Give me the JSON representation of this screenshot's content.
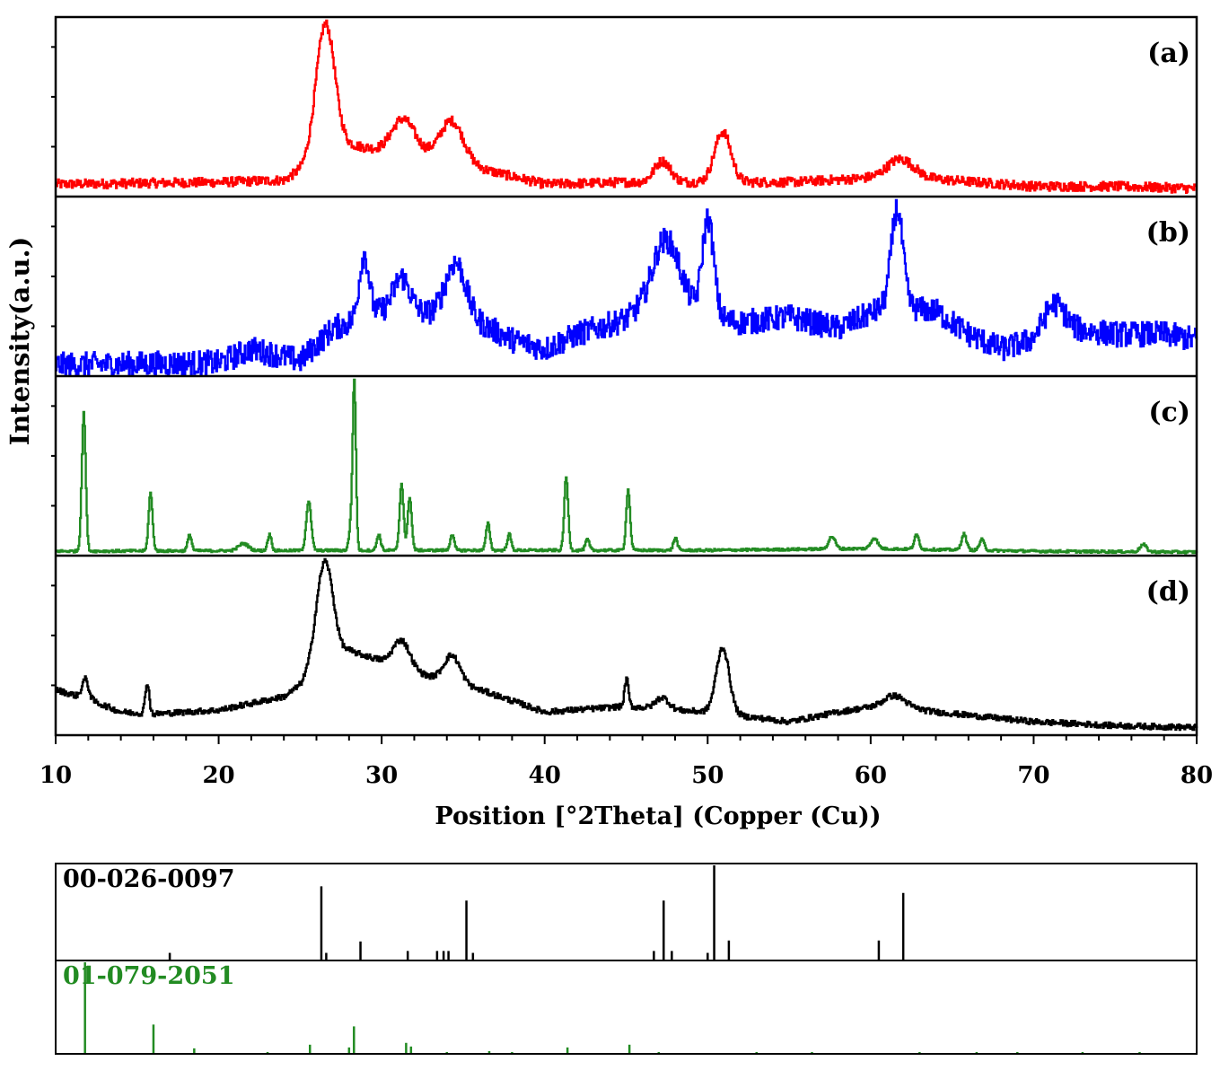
{
  "chart_data": [
    {
      "type": "line",
      "title": "",
      "xlabel": "Position [°2Theta] (Copper (Cu))",
      "ylabel": "Intensity(a.u.)",
      "xlim": [
        10,
        80
      ],
      "x_ticks": [
        10,
        20,
        30,
        40,
        50,
        60,
        70,
        80
      ],
      "x_tick_labels": [
        "10",
        "20",
        "30",
        "40",
        "50",
        "60",
        "70",
        "80"
      ],
      "grid": false,
      "legend": "none",
      "panels": [
        {
          "label": "(a)",
          "color": "#ff0000",
          "noise": 9,
          "baseline": [
            [
              10,
              10
            ],
            [
              20,
              12
            ],
            [
              24,
              14
            ],
            [
              25,
              24
            ],
            [
              26,
              40
            ],
            [
              27,
              55
            ],
            [
              28,
              48
            ],
            [
              30,
              42
            ],
            [
              33,
              38
            ],
            [
              36,
              25
            ],
            [
              40,
              10
            ],
            [
              45,
              12
            ],
            [
              50,
              12
            ],
            [
              55,
              12
            ],
            [
              60,
              16
            ],
            [
              63,
              16
            ],
            [
              70,
              8
            ],
            [
              75,
              8
            ],
            [
              80,
              6
            ]
          ],
          "peaks": [
            [
              26.5,
              115,
              0.55
            ],
            [
              31.3,
              32,
              0.7
            ],
            [
              34.3,
              38,
              0.7
            ],
            [
              47.2,
              20,
              0.5
            ],
            [
              50.9,
              48,
              0.5
            ],
            [
              61.8,
              18,
              0.8
            ]
          ]
        },
        {
          "label": "(b)",
          "color": "#0000ff",
          "noise": 22,
          "baseline": [
            [
              10,
              8
            ],
            [
              20,
              10
            ],
            [
              22,
              22
            ],
            [
              25,
              12
            ],
            [
              27,
              40
            ],
            [
              30,
              55
            ],
            [
              35,
              52
            ],
            [
              38,
              30
            ],
            [
              40,
              22
            ],
            [
              42,
              35
            ],
            [
              45,
              48
            ],
            [
              47,
              70
            ],
            [
              50,
              50
            ],
            [
              52,
              45
            ],
            [
              55,
              50
            ],
            [
              58,
              40
            ],
            [
              61,
              60
            ],
            [
              64,
              55
            ],
            [
              66,
              35
            ],
            [
              68,
              22
            ],
            [
              70,
              30
            ],
            [
              72,
              40
            ],
            [
              75,
              35
            ],
            [
              78,
              35
            ],
            [
              80,
              30
            ]
          ],
          "peaks": [
            [
              28.9,
              55,
              0.3
            ],
            [
              31.2,
              30,
              0.5
            ],
            [
              34.5,
              45,
              0.6
            ],
            [
              47.5,
              50,
              0.8
            ],
            [
              50.0,
              85,
              0.35
            ],
            [
              61.6,
              85,
              0.35
            ],
            [
              71.2,
              25,
              0.6
            ]
          ]
        },
        {
          "label": "(c)",
          "color": "#228b22",
          "noise": 3,
          "baseline": [
            [
              10,
              3
            ],
            [
              30,
              4
            ],
            [
              50,
              4
            ],
            [
              60,
              6
            ],
            [
              70,
              3
            ],
            [
              80,
              2
            ]
          ],
          "peaks": [
            [
              11.7,
              155,
              0.12
            ],
            [
              15.8,
              65,
              0.12
            ],
            [
              18.2,
              18,
              0.12
            ],
            [
              21.5,
              8,
              0.3
            ],
            [
              23.1,
              18,
              0.12
            ],
            [
              25.5,
              55,
              0.15
            ],
            [
              28.1,
              28,
              0.12
            ],
            [
              28.3,
              185,
              0.1
            ],
            [
              29.8,
              18,
              0.12
            ],
            [
              31.2,
              75,
              0.12
            ],
            [
              31.7,
              60,
              0.12
            ],
            [
              34.3,
              18,
              0.12
            ],
            [
              36.5,
              30,
              0.12
            ],
            [
              37.8,
              18,
              0.12
            ],
            [
              41.3,
              82,
              0.12
            ],
            [
              42.6,
              12,
              0.12
            ],
            [
              45.1,
              68,
              0.12
            ],
            [
              48.0,
              14,
              0.12
            ],
            [
              57.6,
              14,
              0.2
            ],
            [
              60.2,
              12,
              0.2
            ],
            [
              62.8,
              16,
              0.15
            ],
            [
              65.7,
              18,
              0.15
            ],
            [
              66.8,
              12,
              0.15
            ],
            [
              76.7,
              8,
              0.2
            ]
          ]
        },
        {
          "label": "(d)",
          "color": "#000000",
          "noise": 6,
          "baseline": [
            [
              10,
              45
            ],
            [
              12,
              35
            ],
            [
              14,
              22
            ],
            [
              16,
              20
            ],
            [
              20,
              24
            ],
            [
              24,
              38
            ],
            [
              25,
              50
            ],
            [
              26,
              75
            ],
            [
              28,
              85
            ],
            [
              30,
              75
            ],
            [
              33,
              58
            ],
            [
              36,
              45
            ],
            [
              40,
              22
            ],
            [
              45,
              28
            ],
            [
              48,
              24
            ],
            [
              50,
              22
            ],
            [
              52,
              18
            ],
            [
              55,
              12
            ],
            [
              58,
              22
            ],
            [
              61,
              30
            ],
            [
              64,
              22
            ],
            [
              70,
              12
            ],
            [
              75,
              8
            ],
            [
              80,
              6
            ]
          ],
          "peaks": [
            [
              11.8,
              20,
              0.2
            ],
            [
              15.6,
              32,
              0.12
            ],
            [
              26.5,
              100,
              0.5
            ],
            [
              31.2,
              28,
              0.5
            ],
            [
              34.3,
              28,
              0.5
            ],
            [
              45.0,
              28,
              0.12
            ],
            [
              47.2,
              12,
              0.4
            ],
            [
              50.9,
              68,
              0.4
            ],
            [
              61.5,
              10,
              0.6
            ]
          ]
        }
      ]
    },
    {
      "type": "bar",
      "title": "",
      "xlim": [
        10,
        80
      ],
      "grid": false,
      "references": [
        {
          "label": "00-026-0097",
          "color": "#000000",
          "lines": [
            [
              17,
              8
            ],
            [
              26.3,
              78
            ],
            [
              26.6,
              8
            ],
            [
              28.7,
              20
            ],
            [
              31.6,
              10
            ],
            [
              33.4,
              10
            ],
            [
              33.8,
              10
            ],
            [
              34.1,
              10
            ],
            [
              35.2,
              63
            ],
            [
              35.6,
              8
            ],
            [
              46.7,
              10
            ],
            [
              47.3,
              63
            ],
            [
              47.8,
              10
            ],
            [
              50.0,
              8
            ],
            [
              50.4,
              100
            ],
            [
              51.3,
              21
            ],
            [
              60.5,
              21
            ],
            [
              62.0,
              71
            ]
          ]
        },
        {
          "label": "01-079-2051",
          "color": "#228b22",
          "lines": [
            [
              11.8,
              100
            ],
            [
              16.0,
              32
            ],
            [
              18.5,
              6
            ],
            [
              23.0,
              2
            ],
            [
              25.6,
              10
            ],
            [
              28.0,
              7
            ],
            [
              28.3,
              30
            ],
            [
              31.5,
              12
            ],
            [
              31.8,
              8
            ],
            [
              34.0,
              2
            ],
            [
              36.6,
              3
            ],
            [
              38.0,
              2
            ],
            [
              41.4,
              7
            ],
            [
              45.2,
              10
            ],
            [
              47.0,
              2
            ],
            [
              53.0,
              2
            ],
            [
              56.4,
              2
            ],
            [
              63.0,
              2
            ],
            [
              66.5,
              2
            ],
            [
              69.0,
              2
            ],
            [
              73.0,
              2
            ],
            [
              76.5,
              2
            ]
          ]
        }
      ]
    }
  ]
}
